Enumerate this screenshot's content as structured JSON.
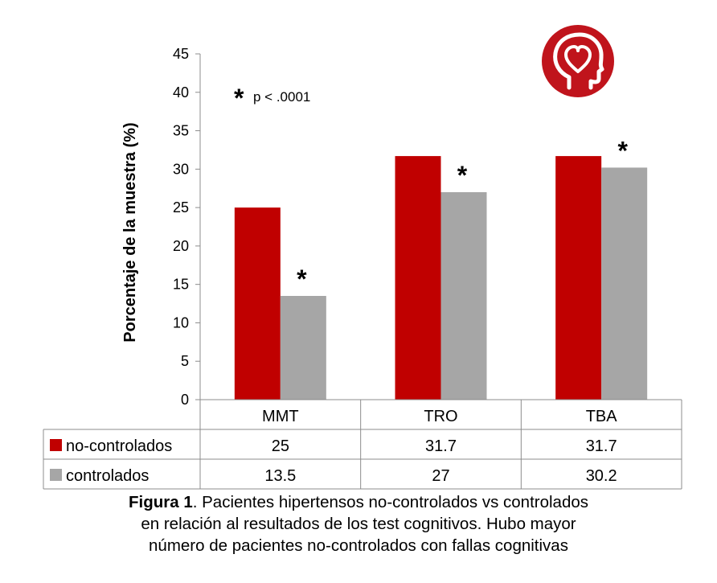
{
  "chart_data": {
    "type": "bar",
    "categories": [
      "MMT",
      "TRO",
      "TBA"
    ],
    "series": [
      {
        "name": "no-controlados",
        "values": [
          25,
          31.7,
          31.7
        ],
        "color": "#c00000"
      },
      {
        "name": "controlados",
        "values": [
          13.5,
          27,
          30.2
        ],
        "color": "#a6a6a6"
      }
    ],
    "ylabel": "Porcentaje de la muestra (%)",
    "ylim": [
      0,
      45
    ],
    "yticks": [
      0,
      5,
      10,
      15,
      20,
      25,
      30,
      35,
      40,
      45
    ],
    "grid": false,
    "legend": "data-table-below",
    "annotations": {
      "significance_marker": "*",
      "significance_note": "p < .0001",
      "marked_series": "controlados",
      "marked_categories": [
        "MMT",
        "TRO",
        "TBA"
      ]
    },
    "data_table": {
      "rows": [
        {
          "label": "no-controlados",
          "cells": [
            "25",
            "31.7",
            "31.7"
          ]
        },
        {
          "label": "controlados",
          "cells": [
            "13.5",
            "27",
            "30.2"
          ]
        }
      ]
    }
  },
  "logo": {
    "icon": "head-heart-icon",
    "color": "#c0141c"
  },
  "caption": {
    "label": "Figura 1",
    "line1": ". Pacientes hipertensos no-controlados vs controlados",
    "line2": "en relación al resultados de los test cognitivos. Hubo mayor",
    "line3": "número de pacientes no-controlados con fallas cognitivas"
  }
}
